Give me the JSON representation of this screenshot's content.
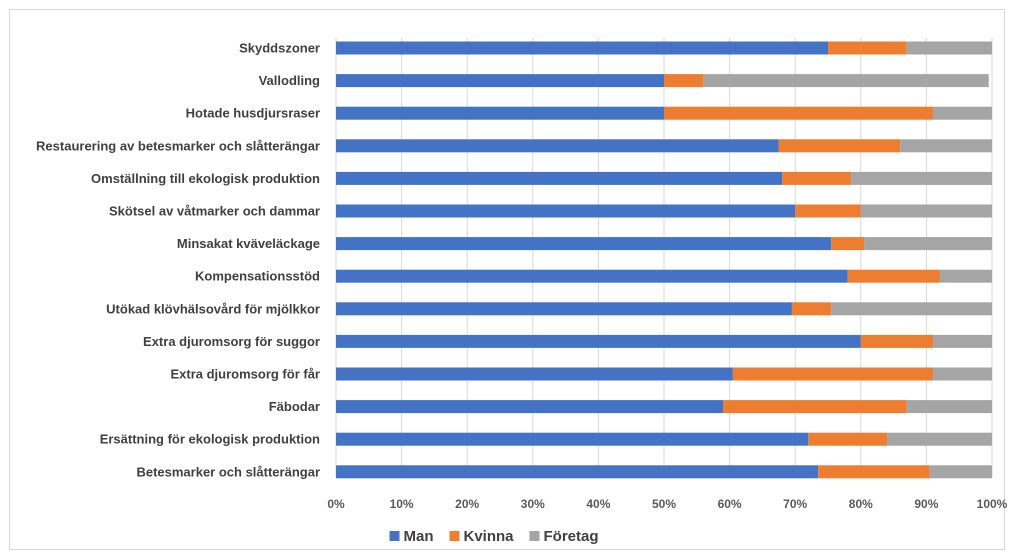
{
  "chart_data": {
    "type": "bar",
    "orientation": "horizontal",
    "stacked": "percent",
    "title": "",
    "xlabel": "",
    "ylabel": "",
    "xlim": [
      0,
      100
    ],
    "x_ticks": [
      "0%",
      "10%",
      "20%",
      "30%",
      "40%",
      "50%",
      "60%",
      "70%",
      "80%",
      "90%",
      "100%"
    ],
    "grid": true,
    "legend_position": "bottom",
    "categories": [
      "Skyddszoner",
      "Vallodling",
      "Hotade husdjursraser",
      "Restaurering av betesmarker och slåtterängar",
      "Omställning till ekologisk produktion",
      "Skötsel av våtmarker och dammar",
      "Minsakat kväveläckage",
      "Kompensationsstöd",
      "Utökad klövhälsovård för mjölkkor",
      "Extra djuromsorg för suggor",
      "Extra djuromsorg för får",
      "Fäbodar",
      "Ersättning för ekologisk produktion",
      "Betesmarker och slåtterängar"
    ],
    "series": [
      {
        "name": "Man",
        "color": "#4472c4",
        "values": [
          75,
          50,
          50,
          67.5,
          68,
          70,
          75.5,
          78,
          69.5,
          80,
          60.5,
          59,
          72,
          73.5
        ]
      },
      {
        "name": "Kvinna",
        "color": "#ed7d31",
        "values": [
          12,
          6,
          41,
          18.5,
          10.5,
          10,
          5,
          14,
          6,
          11,
          30.5,
          28,
          12,
          17
        ]
      },
      {
        "name": "Företag",
        "color": "#a5a5a5",
        "values": [
          13,
          43.5,
          9,
          14,
          21.5,
          20,
          19.5,
          8,
          24.5,
          9,
          9,
          13,
          16,
          9.5
        ]
      }
    ]
  }
}
